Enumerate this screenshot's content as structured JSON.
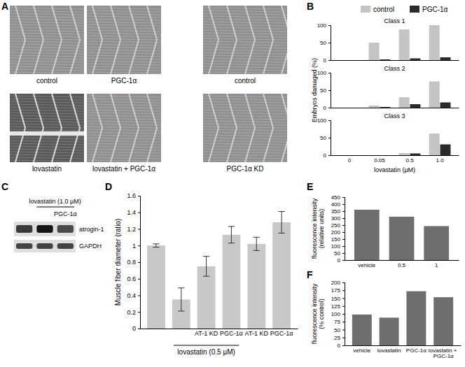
{
  "chart_data": [
    {
      "type": "image",
      "title": "A",
      "labels": [
        [
          "control",
          "PGC-1α",
          "control"
        ],
        [
          "lovastatin",
          "lovastatin + PGC-1α",
          "PGC-1α KD"
        ]
      ]
    },
    {
      "type": "bar",
      "title": "B",
      "categories": [
        "0",
        "0.05",
        "0.5",
        "1.0"
      ],
      "xlabel": "lovastatin (µM)",
      "ylabel": "Embryos damaged (%)",
      "ylim": [
        0,
        100
      ],
      "yticks": [
        0,
        50,
        100
      ],
      "legend": "top",
      "series": [
        {
          "name": "control",
          "color": "#c4c4c4"
        },
        {
          "name": "PGC-1α",
          "color": "#2b2b2b"
        }
      ],
      "panels": [
        {
          "label": "Class 1",
          "values": [
            [
              0,
              50,
              88,
              100
            ],
            [
              0,
              2,
              5,
              8
            ]
          ]
        },
        {
          "label": "Class 2",
          "values": [
            [
              0,
              6,
              30,
              75
            ],
            [
              0,
              2,
              10,
              15
            ]
          ]
        },
        {
          "label": "Class 3",
          "values": [
            [
              0,
              0,
              6,
              62
            ],
            [
              0,
              0,
              5,
              31
            ]
          ]
        }
      ]
    },
    {
      "type": "blot",
      "title": "C",
      "header": "lovastatin (1.0 µM)",
      "subheader": "PGC-1α",
      "rows": [
        "atrogin-1",
        "GAPDH"
      ]
    },
    {
      "type": "bar",
      "title": "D",
      "categories": [
        null,
        null,
        "AT-1 KD",
        "PGC-1α",
        "AT-1 KD",
        "PGC-1α"
      ],
      "annotation": "lovastatin (0.5 µM)",
      "ylabel": "Muscle fiber diameter (ratio)",
      "values": [
        1.0,
        0.35,
        0.75,
        1.13,
        1.02,
        1.28
      ],
      "errors": [
        0.02,
        0.14,
        0.12,
        0.1,
        0.08,
        0.13
      ],
      "color": "#c8c8c8",
      "ylim": [
        0,
        1.6
      ],
      "yticks": [
        0,
        0.2,
        0.4,
        0.6,
        0.8,
        1,
        1.2,
        1.4,
        1.6
      ]
    },
    {
      "type": "bar",
      "title": "E",
      "categories": [
        "vehicle",
        "0.5",
        "1"
      ],
      "ylabel": [
        "fluorescence intensity",
        "(relative units)"
      ],
      "values": [
        360,
        310,
        243
      ],
      "color": "#6e6e6e",
      "ylim": [
        0,
        450
      ],
      "yticks": [
        0,
        50,
        100,
        150,
        200,
        250,
        300,
        350,
        400,
        450
      ]
    },
    {
      "type": "bar",
      "title": "F",
      "categories": [
        "vehicle",
        "lovastatin",
        "PGC-1α",
        "lovastatin + PGC-1α"
      ],
      "ylabel": [
        "fluorescence intensity",
        "(% control)"
      ],
      "values": [
        98,
        88,
        172,
        153
      ],
      "color": "#6e6e6e",
      "ylim": [
        0,
        200
      ],
      "yticks": [
        0,
        25,
        50,
        75,
        100,
        125,
        150,
        175,
        200
      ]
    }
  ]
}
